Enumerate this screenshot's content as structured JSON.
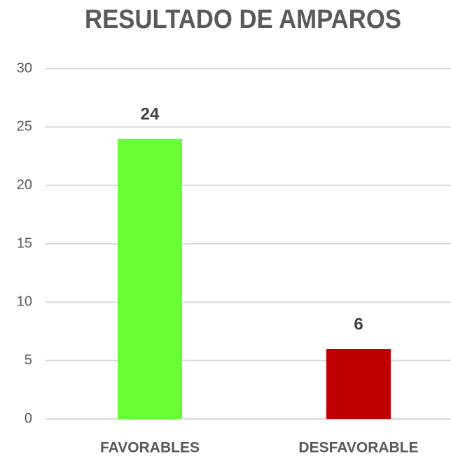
{
  "chart_data": {
    "type": "bar",
    "title": "RESULTADO DE AMPAROS",
    "categories": [
      "FAVORABLES",
      "DESFAVORABLE"
    ],
    "values": [
      24,
      6
    ],
    "colors": [
      "#66ff33",
      "#c00000"
    ],
    "ylim": [
      0,
      30
    ],
    "yticks": [
      0,
      5,
      10,
      15,
      20,
      25,
      30
    ],
    "grid": true
  }
}
